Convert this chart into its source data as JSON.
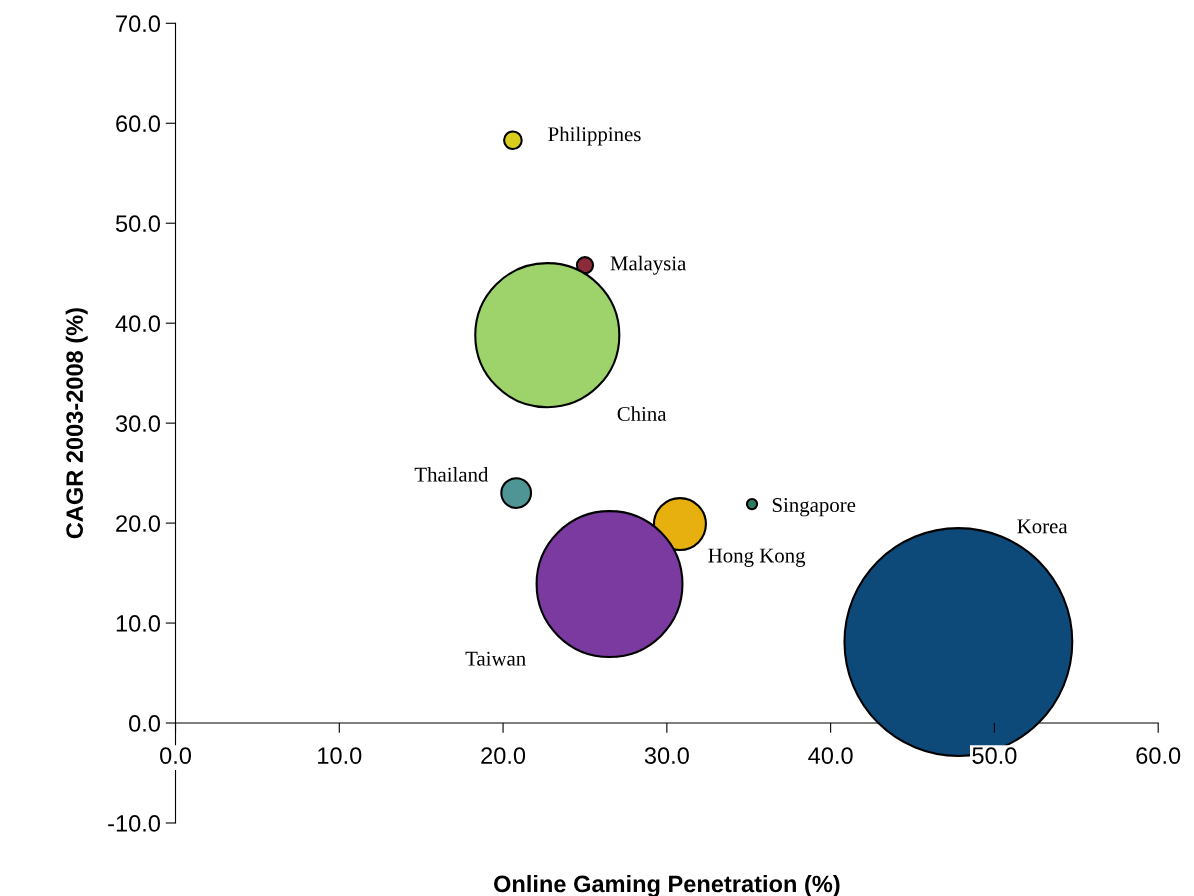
{
  "chart_data": {
    "type": "bubble",
    "xlabel": "Online Gaming Penetration (%)",
    "ylabel": "CAGR 2003-2008 (%)",
    "series": [
      {
        "name": "Philippines",
        "color": "#d8cc1c",
        "x": [
          20.6
        ],
        "values": [
          58.3
        ],
        "sizes": [
          0.006
        ]
      },
      {
        "name": "Malaysia",
        "color": "#8b2a3a",
        "x": [
          25.0
        ],
        "values": [
          45.8
        ],
        "sizes": [
          0.005
        ]
      },
      {
        "name": "China",
        "color": "#9dd36a",
        "x": [
          22.7
        ],
        "values": [
          38.8
        ],
        "sizes": [
          0.4
        ]
      },
      {
        "name": "Thailand",
        "color": "#4f9595",
        "x": [
          20.8
        ],
        "values": [
          23.0
        ],
        "sizes": [
          0.017
        ]
      },
      {
        "name": "Singapore",
        "color": "#2e7a5e",
        "x": [
          35.2
        ],
        "values": [
          21.9
        ],
        "sizes": [
          0.002
        ]
      },
      {
        "name": "Hong Kong",
        "color": "#e8b00e",
        "x": [
          30.8
        ],
        "values": [
          19.9
        ],
        "sizes": [
          0.052
        ]
      },
      {
        "name": "Taiwan",
        "color": "#7a3aa0",
        "x": [
          26.5
        ],
        "values": [
          13.9
        ],
        "sizes": [
          0.41
        ]
      },
      {
        "name": "Korea",
        "color": "#0d4a7a",
        "x": [
          47.8
        ],
        "values": [
          8.1
        ],
        "sizes": [
          1
        ]
      }
    ],
    "xlim": [
      0,
      60
    ],
    "xticks": [
      {
        "value": 0,
        "label": "0.0"
      },
      {
        "value": 10,
        "label": "10.0"
      },
      {
        "value": 20,
        "label": "20.0"
      },
      {
        "value": 30,
        "label": "30.0"
      },
      {
        "value": 40,
        "label": "40.0"
      },
      {
        "value": 50,
        "label": "50.0"
      },
      {
        "value": 60,
        "label": "60.0"
      }
    ],
    "ylim": [
      -10,
      70
    ],
    "yticks": [
      {
        "value": -10,
        "label": "-10.0"
      },
      {
        "value": 0,
        "label": "0.0"
      },
      {
        "value": 10,
        "label": "10.0"
      },
      {
        "value": 20,
        "label": "20.0"
      },
      {
        "value": 30,
        "label": "30.0"
      },
      {
        "value": 40,
        "label": "40.0"
      },
      {
        "value": 50,
        "label": "50.0"
      },
      {
        "value": 60,
        "label": "60.0"
      },
      {
        "value": 70,
        "label": "70.0"
      }
    ],
    "grid": false,
    "legend": false
  }
}
